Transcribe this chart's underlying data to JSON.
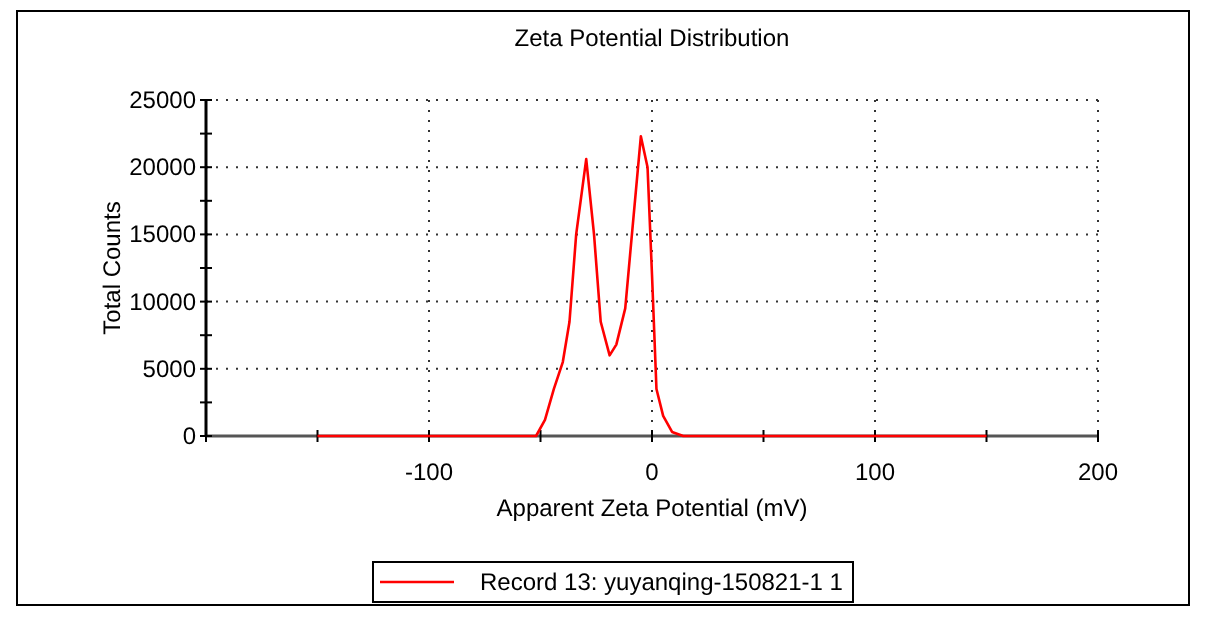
{
  "chart_data": {
    "type": "line",
    "title": "Zeta Potential Distribution",
    "xlabel": "Apparent Zeta Potential (mV)",
    "ylabel": "Total Counts",
    "xlim": [
      -200,
      200
    ],
    "xticks": [
      {
        "value": -200,
        "label": null
      },
      {
        "value": -150,
        "label": null
      },
      -100,
      {
        "value": -50,
        "label": null
      },
      0,
      {
        "value": 50,
        "label": null
      },
      100,
      {
        "value": 150,
        "label": null
      },
      200
    ],
    "ylim": [
      0,
      25000
    ],
    "yticks": [
      0,
      {
        "value": 2500,
        "label": null
      },
      5000,
      {
        "value": 7500,
        "label": null
      },
      10000,
      {
        "value": 12500,
        "label": null
      },
      15000,
      {
        "value": 17500,
        "label": null
      },
      20000,
      {
        "value": 22500,
        "label": null
      },
      25000
    ],
    "grid": true,
    "legend": "bottom",
    "series": [
      {
        "name": "Record 13: yuyanqing-150821-1 1",
        "color": "#ff0000",
        "x": [
          -150,
          -52,
          -48,
          -44,
          -40,
          -37,
          -34,
          -29.5,
          -26,
          -23,
          -19,
          -16,
          -12,
          -9,
          -5,
          -2,
          0,
          2,
          5,
          9,
          14,
          150
        ],
        "values": [
          0,
          0,
          1200,
          3500,
          5500,
          8500,
          15000,
          20600,
          15000,
          8500,
          6000,
          6800,
          9500,
          15000,
          22300,
          20000,
          12000,
          3500,
          1500,
          300,
          0,
          0
        ]
      }
    ]
  }
}
